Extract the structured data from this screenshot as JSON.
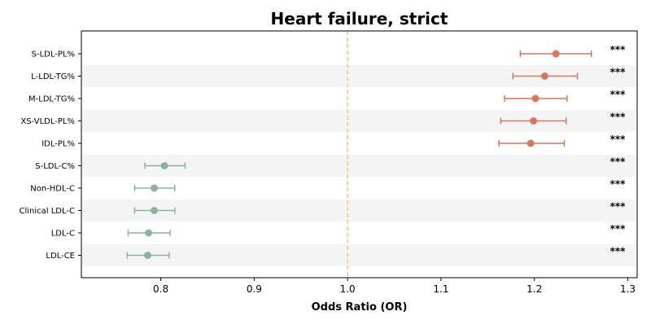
{
  "chart_data": {
    "type": "forest",
    "title": "Heart failure, strict",
    "xlabel": "Odds Ratio (OR)",
    "xlim": [
      0.715,
      1.31
    ],
    "xticks": [
      0.8,
      0.9,
      1.0,
      1.1,
      1.2,
      1.3
    ],
    "xtick_labels": [
      "0.8",
      "0.9",
      "1.0",
      "1.1",
      "1.2",
      "1.3"
    ],
    "reference_line": 1.0,
    "colors": {
      "positive": "#d9765f",
      "negative": "#8bb59b",
      "reference": "#f2c57a",
      "band": "#f4f4f4"
    },
    "rows": [
      {
        "label": "S-LDL-PL%",
        "or": 1.223,
        "ci_low": 1.185,
        "ci_high": 1.261,
        "significance": "***"
      },
      {
        "label": "L-LDL-TG%",
        "or": 1.211,
        "ci_low": 1.177,
        "ci_high": 1.246,
        "significance": "***"
      },
      {
        "label": "M-LDL-TG%",
        "or": 1.201,
        "ci_low": 1.168,
        "ci_high": 1.235,
        "significance": "***"
      },
      {
        "label": "XS-VLDL-PL%",
        "or": 1.199,
        "ci_low": 1.164,
        "ci_high": 1.234,
        "significance": "***"
      },
      {
        "label": "IDL-PL%",
        "or": 1.196,
        "ci_low": 1.162,
        "ci_high": 1.232,
        "significance": "***"
      },
      {
        "label": "S-LDL-C%",
        "or": 0.804,
        "ci_low": 0.783,
        "ci_high": 0.826,
        "significance": "***"
      },
      {
        "label": "Non-HDL-C",
        "or": 0.793,
        "ci_low": 0.772,
        "ci_high": 0.815,
        "significance": "***"
      },
      {
        "label": "Clinical LDL-C",
        "or": 0.793,
        "ci_low": 0.772,
        "ci_high": 0.815,
        "significance": "***"
      },
      {
        "label": "LDL-C",
        "or": 0.787,
        "ci_low": 0.765,
        "ci_high": 0.81,
        "significance": "***"
      },
      {
        "label": "LDL-CE",
        "or": 0.786,
        "ci_low": 0.764,
        "ci_high": 0.809,
        "significance": "***"
      }
    ]
  }
}
